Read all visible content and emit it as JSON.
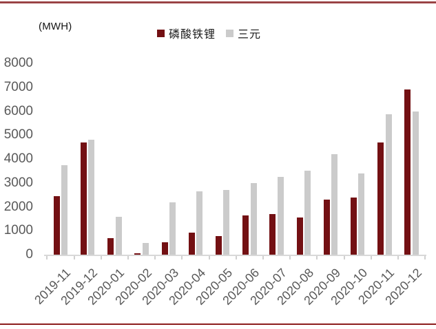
{
  "figure": {
    "unit_label": "(MWH)"
  },
  "chart_data": {
    "type": "bar",
    "title": "",
    "unit_label": "(MWH)",
    "categories": [
      "2019-11",
      "2019-12",
      "2020-01",
      "2020-02",
      "2020-03",
      "2020-04",
      "2020-05",
      "2020-06",
      "2020-07",
      "2020-08",
      "2020-09",
      "2020-10",
      "2020-11",
      "2020-12"
    ],
    "series": [
      {
        "key": "lfp",
        "name": "磷酸铁锂",
        "color": "#731013",
        "values": [
          2450,
          4700,
          700,
          70,
          520,
          930,
          790,
          1650,
          1700,
          1550,
          2300,
          2400,
          4700,
          6900
        ]
      },
      {
        "key": "ternary",
        "name": "三元",
        "color": "#cbcbcb",
        "values": [
          3750,
          4800,
          1580,
          500,
          2200,
          2650,
          2700,
          3000,
          3250,
          3500,
          4200,
          3400,
          5880,
          6000
        ]
      }
    ],
    "xlabel": "",
    "ylabel": "",
    "ylim": [
      0,
      8000
    ],
    "ytick_step": 1000,
    "grid": false,
    "legend_position": "top-center",
    "axis_text_color": "#595959",
    "frame_rule_top_color": "#9a4345",
    "frame_rule_bottom_color": "#8b1b1c"
  }
}
